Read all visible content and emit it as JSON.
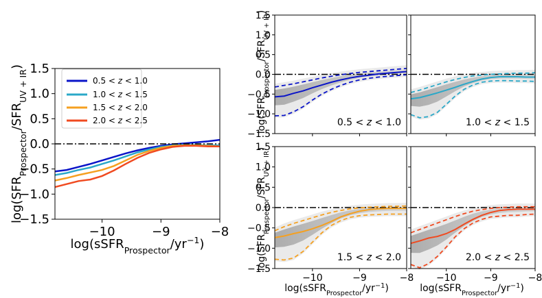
{
  "chart_data": [
    {
      "type": "line",
      "xlabel": "log(sSFR_Prospector/yr^-1)",
      "ylabel": "log(SFR_Prospector/SFR_UV+IR)",
      "xlim": [
        -10.8,
        -8.0
      ],
      "ylim": [
        -1.5,
        1.5
      ],
      "xticks": [
        -10,
        -9,
        -8
      ],
      "xtick_labels": [
        "−10",
        "−9",
        "−8"
      ],
      "yticks": [
        -1.5,
        -1.0,
        -0.5,
        0.0,
        0.5,
        1.0,
        1.5
      ],
      "ytick_labels": [
        "−1.5",
        "−1.0",
        "−0.5",
        "0.0",
        "0.5",
        "1.0",
        "1.5"
      ],
      "reference_line": {
        "y": 0.0,
        "style": "dash-dot"
      },
      "legend_position": "upper-left",
      "series": [
        {
          "name": "0.5 < z < 1.0",
          "color": "#0a14c8",
          "x": [
            -10.8,
            -10.6,
            -10.4,
            -10.2,
            -10.0,
            -9.8,
            -9.6,
            -9.4,
            -9.2,
            -9.0,
            -8.8,
            -8.6,
            -8.4,
            -8.2,
            -8.0
          ],
          "y": [
            -0.55,
            -0.52,
            -0.46,
            -0.4,
            -0.33,
            -0.26,
            -0.19,
            -0.13,
            -0.08,
            -0.04,
            -0.01,
            0.01,
            0.03,
            0.05,
            0.08
          ]
        },
        {
          "name": "1.0 < z < 1.5",
          "color": "#2aa8c8",
          "x": [
            -10.8,
            -10.6,
            -10.4,
            -10.2,
            -10.0,
            -9.8,
            -9.6,
            -9.4,
            -9.2,
            -9.0,
            -8.8,
            -8.6,
            -8.4,
            -8.2,
            -8.0
          ],
          "y": [
            -0.62,
            -0.58,
            -0.52,
            -0.47,
            -0.4,
            -0.33,
            -0.25,
            -0.17,
            -0.11,
            -0.06,
            -0.03,
            -0.02,
            -0.02,
            -0.03,
            -0.03
          ]
        },
        {
          "name": "1.5 < z < 2.0",
          "color": "#f5a020",
          "x": [
            -10.8,
            -10.6,
            -10.4,
            -10.2,
            -10.0,
            -9.8,
            -9.6,
            -9.4,
            -9.2,
            -9.0,
            -8.8,
            -8.6,
            -8.4,
            -8.2,
            -8.0
          ],
          "y": [
            -0.73,
            -0.68,
            -0.62,
            -0.57,
            -0.52,
            -0.44,
            -0.33,
            -0.22,
            -0.14,
            -0.08,
            -0.04,
            -0.03,
            -0.03,
            -0.04,
            -0.05
          ]
        },
        {
          "name": "2.0 < z < 2.5",
          "color": "#f04a20",
          "x": [
            -10.8,
            -10.6,
            -10.4,
            -10.2,
            -10.0,
            -9.8,
            -9.6,
            -9.4,
            -9.2,
            -9.0,
            -8.8,
            -8.6,
            -8.4,
            -8.2,
            -8.0
          ],
          "y": [
            -0.86,
            -0.8,
            -0.74,
            -0.71,
            -0.64,
            -0.53,
            -0.4,
            -0.28,
            -0.18,
            -0.11,
            -0.06,
            -0.04,
            -0.04,
            -0.05,
            -0.05
          ]
        }
      ]
    },
    {
      "type": "grid",
      "xlabel": "log(sSFR_Prospector/yr^-1)",
      "ylabel": "log(SFR_Prospector/SFR_UV+IR)",
      "xlim": [
        -10.8,
        -8.0
      ],
      "ylim": [
        -1.5,
        1.5
      ],
      "xticks": [
        -10,
        -9,
        -8
      ],
      "xtick_labels": [
        "−10",
        "−9",
        "−8"
      ],
      "yticks": [
        -1.5,
        -1.0,
        -0.5,
        0.0,
        0.5,
        1.0,
        1.5
      ],
      "ytick_labels": [
        "−1.5",
        "−1.0",
        "−0.5",
        "0.0",
        "0.5",
        "1.0",
        "1.5"
      ],
      "reference_line": {
        "y": 0.0,
        "style": "dash-dot"
      },
      "panels": [
        {
          "label": "0.5 < z < 1.0",
          "color": "#0a14c8",
          "x": [
            -10.8,
            -10.6,
            -10.4,
            -10.2,
            -10.0,
            -9.8,
            -9.6,
            -9.4,
            -9.2,
            -9.0,
            -8.8,
            -8.6,
            -8.4,
            -8.2,
            -8.0
          ],
          "median": [
            -0.57,
            -0.55,
            -0.48,
            -0.42,
            -0.34,
            -0.27,
            -0.2,
            -0.14,
            -0.09,
            -0.05,
            -0.02,
            0.01,
            0.03,
            0.05,
            0.07
          ],
          "lower": [
            -1.05,
            -1.04,
            -0.95,
            -0.82,
            -0.65,
            -0.5,
            -0.38,
            -0.28,
            -0.2,
            -0.14,
            -0.1,
            -0.07,
            -0.05,
            -0.03,
            -0.01
          ],
          "upper": [
            -0.32,
            -0.28,
            -0.24,
            -0.19,
            -0.14,
            -0.09,
            -0.05,
            -0.01,
            0.02,
            0.05,
            0.07,
            0.09,
            0.11,
            0.13,
            0.15
          ]
        },
        {
          "label": "1.0 < z < 1.5",
          "color": "#2aa8c8",
          "x": [
            -10.8,
            -10.6,
            -10.4,
            -10.2,
            -10.0,
            -9.8,
            -9.6,
            -9.4,
            -9.2,
            -9.0,
            -8.8,
            -8.6,
            -8.4,
            -8.2,
            -8.0
          ],
          "median": [
            -0.62,
            -0.59,
            -0.53,
            -0.47,
            -0.4,
            -0.33,
            -0.25,
            -0.18,
            -0.12,
            -0.08,
            -0.06,
            -0.06,
            -0.06,
            -0.07,
            -0.07
          ],
          "lower": [
            -1.02,
            -1.1,
            -1.07,
            -0.96,
            -0.76,
            -0.55,
            -0.38,
            -0.27,
            -0.2,
            -0.17,
            -0.16,
            -0.16,
            -0.17,
            -0.17,
            -0.18
          ],
          "upper": [
            -0.46,
            -0.4,
            -0.33,
            -0.26,
            -0.19,
            -0.13,
            -0.08,
            -0.04,
            -0.02,
            0.0,
            0.01,
            0.02,
            0.03,
            0.03,
            0.04
          ]
        },
        {
          "label": "1.5 < z < 2.0",
          "color": "#f5a020",
          "x": [
            -10.8,
            -10.6,
            -10.4,
            -10.2,
            -10.0,
            -9.8,
            -9.6,
            -9.4,
            -9.2,
            -9.0,
            -8.8,
            -8.6,
            -8.4,
            -8.2,
            -8.0
          ],
          "median": [
            -0.74,
            -0.7,
            -0.64,
            -0.59,
            -0.52,
            -0.44,
            -0.34,
            -0.23,
            -0.15,
            -0.09,
            -0.05,
            -0.03,
            -0.02,
            -0.02,
            -0.02
          ],
          "lower": [
            -1.27,
            -1.29,
            -1.24,
            -1.08,
            -0.85,
            -0.62,
            -0.44,
            -0.32,
            -0.24,
            -0.2,
            -0.18,
            -0.17,
            -0.16,
            -0.16,
            -0.16
          ],
          "upper": [
            -0.57,
            -0.47,
            -0.39,
            -0.32,
            -0.25,
            -0.18,
            -0.12,
            -0.07,
            -0.03,
            -0.01,
            0.01,
            0.02,
            0.03,
            0.03,
            0.04
          ]
        },
        {
          "label": "2.0 < z < 2.5",
          "color": "#f04a20",
          "x": [
            -10.8,
            -10.6,
            -10.4,
            -10.2,
            -10.0,
            -9.8,
            -9.6,
            -9.4,
            -9.2,
            -9.0,
            -8.8,
            -8.6,
            -8.4,
            -8.2,
            -8.0
          ],
          "median": [
            -0.88,
            -0.82,
            -0.75,
            -0.71,
            -0.64,
            -0.54,
            -0.41,
            -0.29,
            -0.19,
            -0.12,
            -0.07,
            -0.05,
            -0.04,
            -0.04,
            -0.04
          ],
          "lower": [
            -1.4,
            -1.48,
            -1.38,
            -1.2,
            -0.97,
            -0.72,
            -0.52,
            -0.38,
            -0.29,
            -0.23,
            -0.21,
            -0.19,
            -0.19,
            -0.17,
            -0.16
          ],
          "upper": [
            -0.62,
            -0.54,
            -0.46,
            -0.38,
            -0.3,
            -0.22,
            -0.15,
            -0.09,
            -0.05,
            -0.02,
            0.0,
            0.01,
            0.02,
            0.02,
            0.02
          ]
        }
      ]
    }
  ]
}
